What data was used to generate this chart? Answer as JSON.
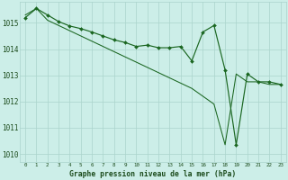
{
  "title": "Graphe pression niveau de la mer (hPa)",
  "bg_color": "#cceee8",
  "grid_color": "#aad4cc",
  "line_color": "#1a6620",
  "ylim": [
    1009.7,
    1015.8
  ],
  "yticks": [
    1010,
    1011,
    1012,
    1013,
    1014,
    1015
  ],
  "x_labels": [
    "0",
    "1",
    "2",
    "3",
    "4",
    "5",
    "6",
    "7",
    "8",
    "9",
    "10",
    "11",
    "12",
    "13",
    "14",
    "15",
    "16",
    "17",
    "18",
    "19",
    "20",
    "21",
    "22",
    "23"
  ],
  "series_marked": [
    1015.2,
    1015.55,
    1015.3,
    1015.05,
    1014.88,
    1014.78,
    1014.65,
    1014.5,
    1014.35,
    1014.25,
    1014.1,
    1014.15,
    1014.05,
    1014.05,
    1014.1,
    1013.55,
    1014.65,
    1014.9,
    1013.2,
    1010.35,
    1013.05,
    1012.75,
    1012.75,
    1012.65
  ],
  "series_smooth": [
    1015.3,
    1015.55,
    1015.1,
    1014.9,
    1014.7,
    1014.5,
    1014.3,
    1014.1,
    1013.9,
    1013.7,
    1013.5,
    1013.3,
    1013.1,
    1012.9,
    1012.7,
    1012.5,
    1012.2,
    1011.9,
    1010.35,
    1013.05,
    1012.75,
    1012.75,
    1012.65,
    1012.65
  ]
}
